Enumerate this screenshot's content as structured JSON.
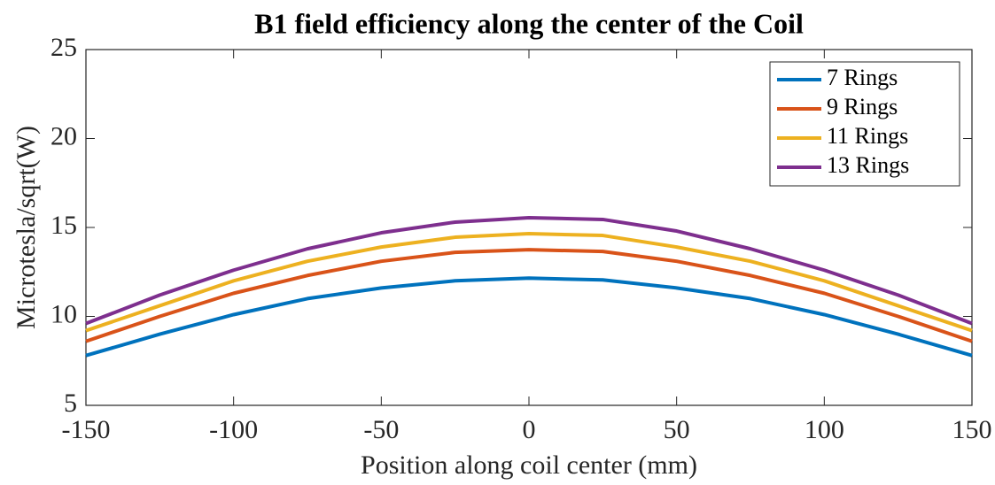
{
  "chart_data": {
    "type": "line",
    "title": "B1 field efficiency along the center of the Coil",
    "xlabel": "Position along coil center (mm)",
    "ylabel": "Microtesla/sqrt(W)",
    "x": [
      -150,
      -125,
      -100,
      -75,
      -50,
      -25,
      0,
      25,
      50,
      75,
      100,
      125,
      150
    ],
    "series": [
      {
        "name": "7 Rings",
        "color": "#0072BD",
        "values": [
          7.8,
          9.0,
          10.1,
          11.0,
          11.6,
          12.0,
          12.15,
          12.05,
          11.6,
          11.0,
          10.1,
          9.0,
          7.8
        ]
      },
      {
        "name": "9 Rings",
        "color": "#D95319",
        "values": [
          8.6,
          10.0,
          11.3,
          12.3,
          13.1,
          13.6,
          13.75,
          13.65,
          13.1,
          12.3,
          11.3,
          10.0,
          8.6
        ]
      },
      {
        "name": "11 Rings",
        "color": "#EDB120",
        "values": [
          9.2,
          10.6,
          12.0,
          13.1,
          13.9,
          14.45,
          14.65,
          14.55,
          13.9,
          13.1,
          12.0,
          10.6,
          9.2
        ]
      },
      {
        "name": "13 Rings",
        "color": "#7E2F8E",
        "values": [
          9.6,
          11.2,
          12.6,
          13.8,
          14.7,
          15.3,
          15.55,
          15.45,
          14.8,
          13.8,
          12.6,
          11.2,
          9.6
        ]
      }
    ],
    "xlim": [
      -150,
      150
    ],
    "xticks": [
      -150,
      -100,
      -50,
      0,
      50,
      100,
      150
    ],
    "ylim": [
      5,
      25
    ],
    "yticks": [
      5,
      10,
      15,
      20,
      25
    ],
    "legend": "northeast"
  }
}
